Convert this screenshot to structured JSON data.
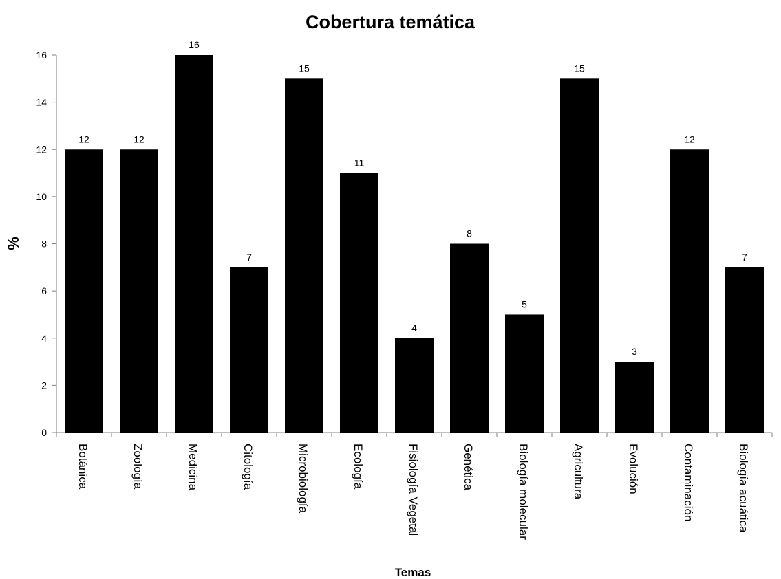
{
  "chart_data": {
    "type": "bar",
    "title": "Cobertura temática",
    "xlabel": "Temas",
    "ylabel": "%",
    "ylim": [
      0,
      16
    ],
    "yticks": [
      0,
      2,
      4,
      6,
      8,
      10,
      12,
      14,
      16
    ],
    "categories": [
      "Botánica",
      "Zoología",
      "Medicina",
      "Citología",
      "Microbiología",
      "Ecología",
      "Fisiología Vegetal",
      "Genética",
      "Biología molecular",
      "Agricultura",
      "Evolución",
      "Contaminación",
      "Biología acuática"
    ],
    "values": [
      12,
      12,
      16,
      7,
      15,
      11,
      4,
      8,
      5,
      15,
      3,
      12,
      7
    ],
    "bar_color": "#000000",
    "grid": false,
    "legend": "none"
  }
}
